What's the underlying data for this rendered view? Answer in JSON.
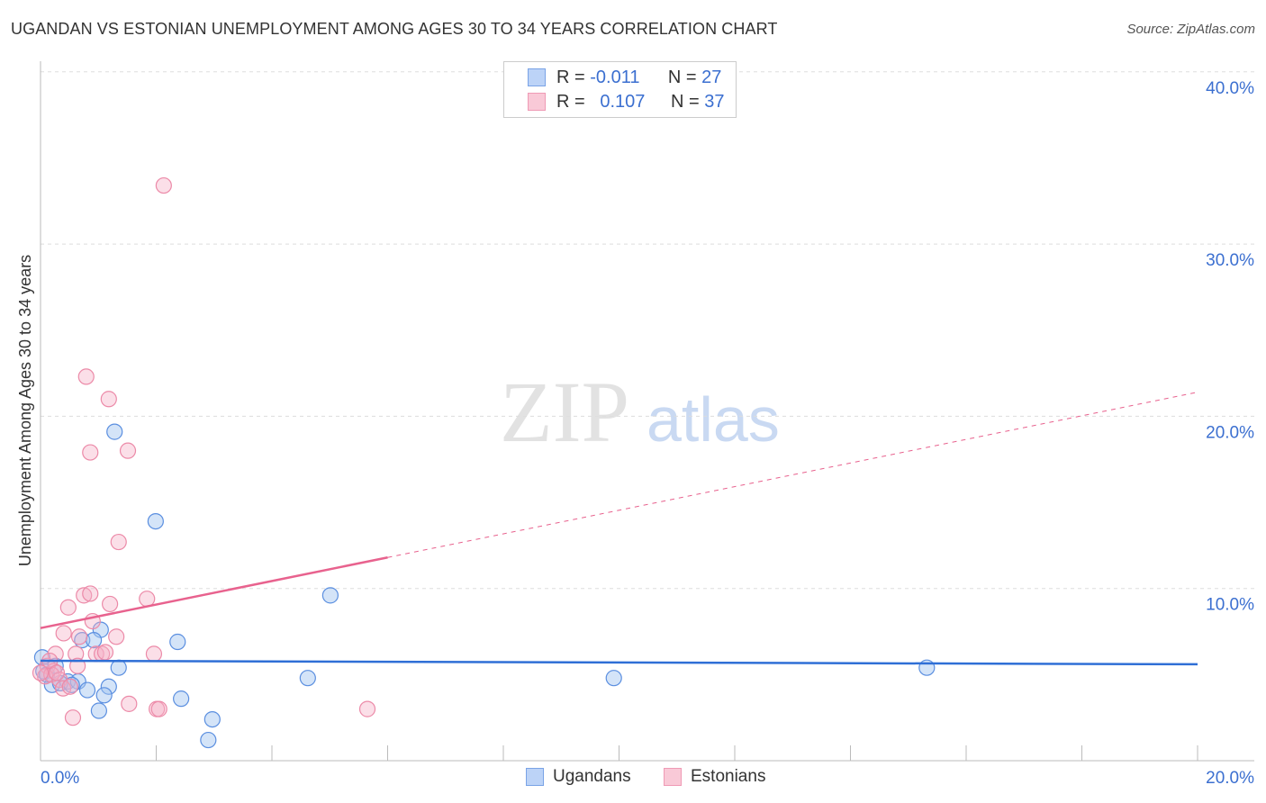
{
  "title": "UGANDAN VS ESTONIAN UNEMPLOYMENT AMONG AGES 30 TO 34 YEARS CORRELATION CHART",
  "source": "Source: ZipAtlas.com",
  "watermark": "ZIPatlas",
  "legend": {
    "rows": [
      {
        "r_label": "R =",
        "r_value": "-0.011",
        "n_label": "N =",
        "n_value": "27"
      },
      {
        "r_label": "R =",
        "r_value": "0.107",
        "n_label": "N =",
        "n_value": "37"
      }
    ]
  },
  "bottom_legend": [
    "Ugandans",
    "Estonians"
  ],
  "chart_data": {
    "type": "scatter",
    "title": "UGANDAN VS ESTONIAN UNEMPLOYMENT AMONG AGES 30 TO 34 YEARS CORRELATION CHART",
    "xlabel": "",
    "ylabel": "Unemployment Among Ages 30 to 34 years",
    "xlim": [
      0,
      20
    ],
    "ylim": [
      0,
      40
    ],
    "x_tick_labels": [
      "0.0%",
      "20.0%"
    ],
    "y_tick_values": [
      10,
      20,
      30,
      40
    ],
    "y_tick_labels": [
      "10.0%",
      "20.0%",
      "30.0%",
      "40.0%"
    ],
    "grid": true,
    "legend_placement": "top-center",
    "colors": {
      "Ugandans": "#5b8fe0",
      "Estonians": "#ec8aa8",
      "blue_line": "#2f6fd6",
      "pink_line": "#e8628e"
    },
    "series": [
      {
        "name": "Ugandans",
        "r": -0.011,
        "n": 27,
        "trend": {
          "x": [
            0,
            20
          ],
          "y": [
            5.8,
            5.6
          ]
        },
        "points": [
          [
            1.28,
            19.1
          ],
          [
            1.99,
            13.9
          ],
          [
            5.01,
            9.6
          ],
          [
            1.04,
            7.6
          ],
          [
            2.37,
            6.9
          ],
          [
            0.72,
            7.0
          ],
          [
            0.92,
            7.0
          ],
          [
            1.35,
            5.4
          ],
          [
            0.03,
            6.0
          ],
          [
            0.05,
            5.2
          ],
          [
            0.2,
            4.4
          ],
          [
            0.47,
            4.6
          ],
          [
            0.65,
            4.6
          ],
          [
            0.81,
            4.1
          ],
          [
            1.18,
            4.3
          ],
          [
            1.1,
            3.8
          ],
          [
            2.43,
            3.6
          ],
          [
            1.01,
            2.9
          ],
          [
            2.97,
            2.4
          ],
          [
            2.9,
            1.2
          ],
          [
            4.62,
            4.8
          ],
          [
            9.91,
            4.8
          ],
          [
            15.32,
            5.4
          ],
          [
            0.34,
            4.5
          ],
          [
            0.54,
            4.4
          ],
          [
            0.11,
            5.0
          ],
          [
            0.26,
            5.5
          ]
        ]
      },
      {
        "name": "Estonians",
        "r": 0.107,
        "n": 37,
        "trend": {
          "x": [
            0,
            6.0
          ],
          "y": [
            7.7,
            11.8
          ],
          "dashed_extension": {
            "x": [
              6.0,
              20
            ],
            "y": [
              11.8,
              21.4
            ]
          }
        },
        "points": [
          [
            2.13,
            33.4
          ],
          [
            0.79,
            22.3
          ],
          [
            1.18,
            21.0
          ],
          [
            0.86,
            17.9
          ],
          [
            1.51,
            18.0
          ],
          [
            1.35,
            12.7
          ],
          [
            0.48,
            8.9
          ],
          [
            0.75,
            9.6
          ],
          [
            0.86,
            9.7
          ],
          [
            1.2,
            9.1
          ],
          [
            1.84,
            9.4
          ],
          [
            0.9,
            8.1
          ],
          [
            0.4,
            7.4
          ],
          [
            0.67,
            7.2
          ],
          [
            1.31,
            7.2
          ],
          [
            0.26,
            6.2
          ],
          [
            0.61,
            6.2
          ],
          [
            0.96,
            6.2
          ],
          [
            1.06,
            6.2
          ],
          [
            1.12,
            6.3
          ],
          [
            1.96,
            6.2
          ],
          [
            0.64,
            5.5
          ],
          [
            0.12,
            5.5
          ],
          [
            0.23,
            5.2
          ],
          [
            0.08,
            4.9
          ],
          [
            0.19,
            5.0
          ],
          [
            0.33,
            4.7
          ],
          [
            0.39,
            4.2
          ],
          [
            0.51,
            4.3
          ],
          [
            1.53,
            3.3
          ],
          [
            2.01,
            3.0
          ],
          [
            2.05,
            3.0
          ],
          [
            0.56,
            2.5
          ],
          [
            5.65,
            3.0
          ],
          [
            0.16,
            5.8
          ],
          [
            0.0,
            5.1
          ],
          [
            0.28,
            5.1
          ]
        ]
      }
    ]
  }
}
